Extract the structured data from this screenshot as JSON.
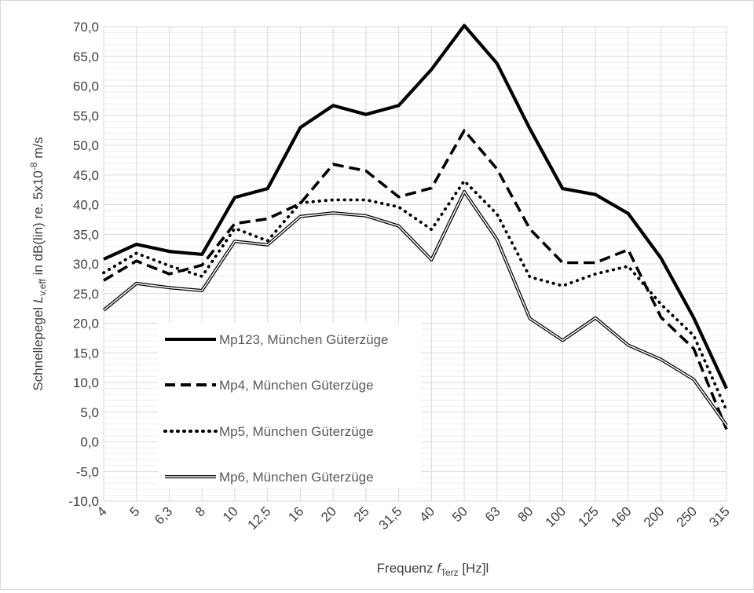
{
  "chart_data": {
    "type": "line",
    "title": "",
    "x_axis": {
      "label_prefix": "Frequenz ",
      "label_symbol": "f",
      "label_subscript": "Terz",
      "label_suffix": " [Hz]l"
    },
    "y_axis": {
      "label_prefix": "Schnellepegel ",
      "label_symbol": "L",
      "label_subscript": "v,eff",
      "label_mid": " in dB(lin) re. 5x10",
      "label_superscript": "-8",
      "label_suffix": " m/s",
      "ylim": [
        -10,
        70
      ],
      "major_step": 5,
      "minor_step": 1
    },
    "categories": [
      "4",
      "5",
      "6,3",
      "8",
      "10",
      "12,5",
      "16",
      "20",
      "25",
      "31,5",
      "40",
      "50",
      "63",
      "80",
      "100",
      "125",
      "160",
      "200",
      "250",
      "315"
    ],
    "y_tick_labels": [
      "-10,0",
      "-5,0",
      "0,0",
      "5,0",
      "10,0",
      "15,0",
      "20,0",
      "25,0",
      "30,0",
      "35,0",
      "40,0",
      "45,0",
      "50,0",
      "55,0",
      "60,0",
      "65,0",
      "70,0"
    ],
    "grid": true,
    "legend_position": "bottom-left",
    "series": [
      {
        "name": "Mp123, München Güterzüge",
        "style": "solid-thick",
        "color": "#000000",
        "values": [
          30.8,
          33.3,
          32.1,
          31.6,
          41.2,
          42.7,
          53.0,
          56.7,
          55.2,
          56.7,
          62.8,
          70.2,
          63.8,
          52.8,
          42.7,
          41.7,
          38.5,
          31.0,
          20.9,
          9.0
        ]
      },
      {
        "name": "Mp4, München Güterzüge",
        "style": "dashed",
        "color": "#000000",
        "values": [
          27.2,
          30.5,
          28.3,
          29.8,
          36.8,
          37.6,
          40.2,
          46.8,
          45.7,
          41.3,
          42.8,
          52.5,
          46.0,
          35.9,
          30.2,
          30.2,
          32.4,
          21.0,
          15.7,
          2.1
        ]
      },
      {
        "name": "Mp5, München Güterzüge",
        "style": "dotted",
        "color": "#000000",
        "values": [
          28.5,
          31.8,
          29.7,
          27.9,
          36.0,
          33.9,
          40.3,
          40.8,
          40.8,
          39.6,
          35.8,
          44.0,
          38.4,
          27.8,
          26.3,
          28.3,
          29.6,
          23.2,
          17.9,
          5.3
        ]
      },
      {
        "name": "Mp6, München Güterzüge",
        "style": "double",
        "color": "#000000",
        "values": [
          22.2,
          26.7,
          26.0,
          25.5,
          33.8,
          33.2,
          38.0,
          38.6,
          38.1,
          36.4,
          30.7,
          42.2,
          34.1,
          20.8,
          17.1,
          20.9,
          16.3,
          13.9,
          10.5,
          2.8
        ]
      }
    ]
  }
}
